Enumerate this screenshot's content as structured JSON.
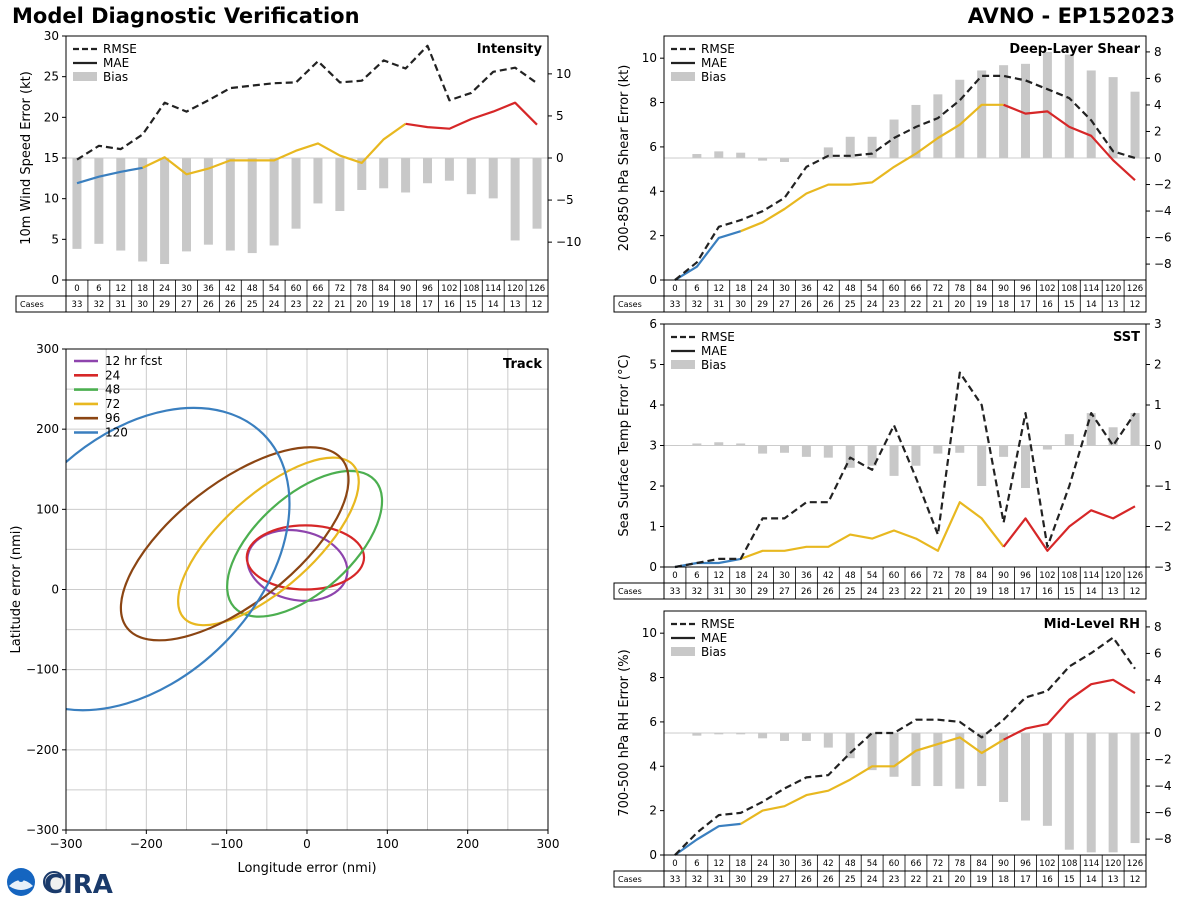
{
  "header": {
    "title": "Model Diagnostic Verification",
    "model_storm": "AVNO - EP152023"
  },
  "legend_labels": {
    "rmse": "RMSE",
    "mae": "MAE",
    "bias": "Bias"
  },
  "cases_label": "Cases",
  "logo_text": "CIRA",
  "colors": {
    "early": "#3a7fbf",
    "mid": "#e8b820",
    "late": "#d62728",
    "rmse": "#222222",
    "bias": "#c8c8c8",
    "grid": "#cccccc"
  },
  "chart_data": [
    {
      "id": "intensity",
      "type": "line",
      "title": "Intensity",
      "ylabel": "10m Wind Speed Error (kt)",
      "ylim": [
        0,
        30
      ],
      "yticks": [
        0,
        5,
        10,
        15,
        20,
        25,
        30
      ],
      "bias_lim": [
        -14.5,
        14.5
      ],
      "bias_ticks": [
        -10,
        -5,
        0,
        5,
        10
      ],
      "hours": [
        0,
        6,
        12,
        18,
        24,
        30,
        36,
        42,
        48,
        54,
        60,
        66,
        72,
        78,
        84,
        90,
        96,
        102,
        108,
        114,
        120,
        126
      ],
      "cases": [
        33,
        32,
        31,
        30,
        29,
        27,
        26,
        26,
        25,
        24,
        23,
        22,
        21,
        20,
        19,
        18,
        17,
        16,
        15,
        14,
        13,
        12
      ],
      "rmse": [
        14.8,
        16.5,
        16.1,
        17.9,
        21.8,
        20.7,
        22.1,
        23.6,
        23.9,
        24.2,
        24.3,
        26.9,
        24.3,
        24.5,
        27.0,
        26.0,
        28.8,
        22.1,
        23.0,
        25.6,
        26.1,
        24.2
      ],
      "mae": [
        11.9,
        12.7,
        13.3,
        13.8,
        15.1,
        13.0,
        13.7,
        14.7,
        14.7,
        14.7,
        15.9,
        16.8,
        15.3,
        14.4,
        17.3,
        19.2,
        18.8,
        18.6,
        19.8,
        20.7,
        21.8,
        19.1
      ],
      "bias": [
        -10.8,
        -10.2,
        -11.0,
        -12.3,
        -12.6,
        -11.1,
        -10.3,
        -11.0,
        -11.3,
        -10.4,
        -8.4,
        -5.4,
        -6.3,
        -3.8,
        -3.6,
        -4.1,
        -3.0,
        -2.7,
        -4.3,
        -4.8,
        -9.8,
        -8.4
      ]
    },
    {
      "id": "shear",
      "type": "line",
      "title": "Deep-Layer Shear",
      "ylabel": "200-850 hPa Shear Error (kt)",
      "ylim": [
        0,
        11
      ],
      "yticks": [
        0,
        2,
        4,
        6,
        8,
        10
      ],
      "bias_lim": [
        -9.2,
        9.2
      ],
      "bias_ticks": [
        -8,
        -6,
        -4,
        -2,
        0,
        2,
        4,
        6,
        8
      ],
      "hours": [
        0,
        6,
        12,
        18,
        24,
        30,
        36,
        42,
        48,
        54,
        60,
        66,
        72,
        78,
        84,
        90,
        96,
        102,
        108,
        114,
        120,
        126
      ],
      "cases": [
        33,
        32,
        31,
        30,
        29,
        27,
        26,
        26,
        25,
        24,
        23,
        22,
        21,
        20,
        19,
        18,
        17,
        16,
        15,
        14,
        13,
        12
      ],
      "rmse": [
        0.0,
        0.8,
        2.4,
        2.7,
        3.1,
        3.7,
        5.1,
        5.6,
        5.6,
        5.7,
        6.4,
        6.9,
        7.3,
        8.1,
        9.2,
        9.2,
        9.0,
        8.6,
        8.2,
        7.2,
        5.8,
        5.5
      ],
      "mae": [
        0.0,
        0.6,
        1.9,
        2.2,
        2.6,
        3.2,
        3.9,
        4.3,
        4.3,
        4.4,
        5.1,
        5.7,
        6.4,
        7.0,
        7.9,
        7.9,
        7.5,
        7.6,
        6.9,
        6.5,
        5.4,
        4.5
      ],
      "bias": [
        0.0,
        0.3,
        0.5,
        0.4,
        -0.2,
        -0.3,
        0.0,
        0.8,
        1.6,
        1.6,
        2.9,
        4.0,
        4.8,
        5.9,
        6.6,
        7.0,
        7.1,
        8.0,
        7.8,
        6.6,
        6.1,
        5.0
      ]
    },
    {
      "id": "sst",
      "type": "line",
      "title": "SST",
      "ylabel": "Sea Surface Temp Error (°C)",
      "ylim": [
        0,
        6
      ],
      "yticks": [
        0,
        1,
        2,
        3,
        4,
        5,
        6
      ],
      "bias_lim": [
        -3,
        3
      ],
      "bias_ticks": [
        -3,
        -2,
        -1,
        0,
        1,
        2,
        3
      ],
      "hours": [
        0,
        6,
        12,
        18,
        24,
        30,
        36,
        42,
        48,
        54,
        60,
        66,
        72,
        78,
        84,
        90,
        96,
        102,
        108,
        114,
        120,
        126
      ],
      "cases": [
        33,
        32,
        31,
        30,
        29,
        27,
        26,
        26,
        25,
        24,
        23,
        22,
        21,
        20,
        19,
        18,
        17,
        16,
        15,
        14,
        13,
        12
      ],
      "rmse": [
        0.0,
        0.1,
        0.2,
        0.2,
        1.2,
        1.2,
        1.6,
        1.6,
        2.7,
        2.4,
        3.5,
        2.2,
        0.8,
        4.8,
        4.0,
        1.1,
        3.8,
        0.5,
        2.0,
        3.8,
        3.0,
        3.8
      ],
      "mae": [
        0.0,
        0.1,
        0.1,
        0.2,
        0.4,
        0.4,
        0.5,
        0.5,
        0.8,
        0.7,
        0.9,
        0.7,
        0.4,
        1.6,
        1.2,
        0.5,
        1.2,
        0.4,
        1.0,
        1.4,
        1.2,
        1.5
      ],
      "bias": [
        0.0,
        0.05,
        0.08,
        0.05,
        -0.2,
        -0.18,
        -0.28,
        -0.3,
        -0.55,
        -0.5,
        -0.75,
        -0.5,
        -0.2,
        -0.18,
        -1.0,
        -0.28,
        -1.05,
        -0.1,
        0.28,
        0.8,
        0.45,
        0.8
      ]
    },
    {
      "id": "rh",
      "type": "line",
      "title": "Mid-Level RH",
      "ylabel": "700-500 hPa RH Error (%)",
      "ylim": [
        0,
        11
      ],
      "yticks": [
        0,
        2,
        4,
        6,
        8,
        10
      ],
      "bias_lim": [
        -9.2,
        9.2
      ],
      "bias_ticks": [
        -8,
        -6,
        -4,
        -2,
        0,
        2,
        4,
        6,
        8
      ],
      "hours": [
        0,
        6,
        12,
        18,
        24,
        30,
        36,
        42,
        48,
        54,
        60,
        66,
        72,
        78,
        84,
        90,
        96,
        102,
        108,
        114,
        120,
        126
      ],
      "cases": [
        33,
        32,
        31,
        30,
        29,
        27,
        26,
        26,
        25,
        24,
        23,
        22,
        21,
        20,
        19,
        18,
        17,
        16,
        15,
        14,
        13,
        12
      ],
      "rmse": [
        0.0,
        1.0,
        1.8,
        1.9,
        2.4,
        3.0,
        3.5,
        3.6,
        4.6,
        5.5,
        5.5,
        6.1,
        6.1,
        6.0,
        5.3,
        6.1,
        7.1,
        7.4,
        8.5,
        9.1,
        9.8,
        8.4
      ],
      "mae": [
        0.0,
        0.7,
        1.3,
        1.4,
        2.0,
        2.2,
        2.7,
        2.9,
        3.4,
        4.0,
        4.0,
        4.7,
        5.0,
        5.3,
        4.6,
        5.2,
        5.7,
        5.9,
        7.0,
        7.7,
        7.9,
        7.3
      ],
      "bias": [
        0.0,
        -0.2,
        -0.1,
        -0.1,
        -0.4,
        -0.6,
        -0.6,
        -1.1,
        -1.9,
        -2.8,
        -3.3,
        -4.0,
        -4.0,
        -4.2,
        -4.0,
        -5.2,
        -6.6,
        -7.0,
        -8.8,
        -9.0,
        -9.0,
        -8.3
      ]
    },
    {
      "id": "track",
      "type": "scatter",
      "title": "Track",
      "xlabel": "Longitude error (nmi)",
      "ylabel": "Latitude error (nmi)",
      "xlim": [
        -300,
        300
      ],
      "ylim": [
        -300,
        300
      ],
      "xticks": [
        -300,
        -200,
        -100,
        0,
        100,
        200,
        300
      ],
      "yticks": [
        -300,
        -200,
        -100,
        0,
        100,
        200,
        300
      ],
      "ellipses": [
        {
          "name": "12 hr fcst",
          "color": "#8e44ad",
          "cx": -12,
          "cy": 30,
          "rx": 63,
          "ry": 43,
          "angle": -12
        },
        {
          "name": "24",
          "color": "#d62728",
          "cx": -2,
          "cy": 40,
          "rx": 73,
          "ry": 40,
          "angle": 0
        },
        {
          "name": "48",
          "color": "#4caf50",
          "cx": -3,
          "cy": 57,
          "rx": 118,
          "ry": 60,
          "angle": 42
        },
        {
          "name": "72",
          "color": "#e8b820",
          "cx": -48,
          "cy": 60,
          "rx": 142,
          "ry": 58,
          "angle": 42
        },
        {
          "name": "96",
          "color": "#8b4513",
          "cx": -90,
          "cy": 57,
          "rx": 170,
          "ry": 75,
          "angle": 38
        },
        {
          "name": "120",
          "color": "#3a7fbf",
          "cx": -210,
          "cy": 38,
          "rx": 220,
          "ry": 150,
          "angle": 45
        }
      ]
    }
  ]
}
